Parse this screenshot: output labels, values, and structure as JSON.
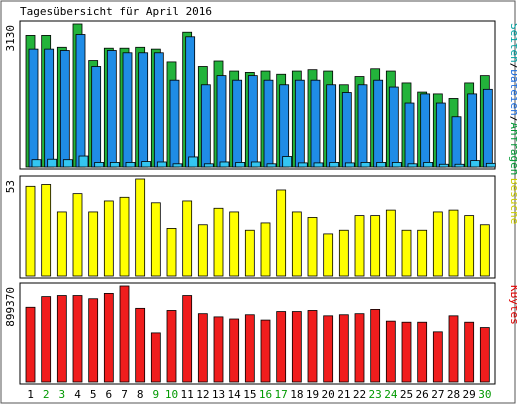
{
  "chart_data": {
    "type": "bar",
    "title": "Tagesübersicht für April 2016",
    "categories": [
      "1",
      "2",
      "3",
      "4",
      "5",
      "6",
      "7",
      "8",
      "9",
      "10",
      "11",
      "12",
      "13",
      "14",
      "15",
      "16",
      "17",
      "18",
      "19",
      "20",
      "21",
      "22",
      "23",
      "24",
      "25",
      "26",
      "27",
      "28",
      "29",
      "30"
    ],
    "weekend_days": [
      "2",
      "3",
      "9",
      "10",
      "16",
      "17",
      "23",
      "24",
      "30"
    ],
    "colors": {
      "anfragen": "#23b33b",
      "dateien": "#1f8ce6",
      "seiten": "#33c6f2",
      "besuche": "#ffff00",
      "kbytes": "#f01d1d",
      "weekday_label": "#000000",
      "weekend_label": "#009900",
      "side_label_seiten": "#00a3a3",
      "side_label_dateien": "#1f6fe0",
      "side_label_anfragen": "#009933",
      "side_label_besuche": "#cccc00",
      "side_label_kbytes": "#dd0000"
    },
    "panels": [
      {
        "id": "hits",
        "ymax_label": "3130",
        "ylim": [
          0,
          3130
        ],
        "side_labels": [
          "Seiten",
          "Dateien",
          "Anfragen"
        ],
        "series": [
          {
            "name": "Anfragen",
            "values": [
              2880,
              2880,
              2620,
              3130,
              2330,
              2600,
              2600,
              2620,
              2580,
              2300,
              2950,
              2200,
              2320,
              2100,
              2070,
              2100,
              2030,
              2100,
              2130,
              2100,
              1800,
              1980,
              2150,
              2100,
              1840,
              1640,
              1600,
              1500,
              1840,
              2000
            ]
          },
          {
            "name": "Dateien",
            "values": [
              2580,
              2580,
              2550,
              2900,
              2200,
              2550,
              2500,
              2500,
              2500,
              1900,
              2850,
              1800,
              2000,
              1900,
              2000,
              1900,
              1800,
              1900,
              1900,
              1800,
              1630,
              1800,
              1900,
              1750,
              1400,
              1600,
              1400,
              1100,
              1600,
              1700
            ]
          },
          {
            "name": "Seiten",
            "values": [
              160,
              170,
              160,
              240,
              100,
              100,
              100,
              120,
              110,
              70,
              220,
              70,
              110,
              100,
              110,
              70,
              230,
              90,
              90,
              100,
              90,
              100,
              100,
              100,
              70,
              100,
              60,
              60,
              140,
              80
            ]
          }
        ]
      },
      {
        "id": "visits",
        "ymax_label": "53",
        "ylim": [
          0,
          53
        ],
        "side_labels": [
          "Besuche"
        ],
        "series": [
          {
            "name": "Besuche",
            "values": [
              49,
              50,
              35,
              45,
              35,
              41,
              43,
              53,
              40,
              26,
              41,
              28,
              37,
              35,
              25,
              29,
              47,
              35,
              32,
              23,
              25,
              33,
              33,
              36,
              25,
              25,
              35,
              36,
              33,
              28
            ]
          }
        ]
      },
      {
        "id": "kbytes",
        "ymax_label": "899370",
        "ylim": [
          0,
          899370
        ],
        "side_labels": [
          "KBytes"
        ],
        "series": [
          {
            "name": "KBytes",
            "values": [
              700000,
              800000,
              810000,
              810000,
              780000,
              830000,
              899370,
              690000,
              460000,
              670000,
              810000,
              640000,
              610000,
              590000,
              630000,
              580000,
              660000,
              660000,
              670000,
              620000,
              630000,
              640000,
              680000,
              570000,
              560000,
              560000,
              470000,
              620000,
              560000,
              510000
            ]
          }
        ]
      }
    ]
  }
}
